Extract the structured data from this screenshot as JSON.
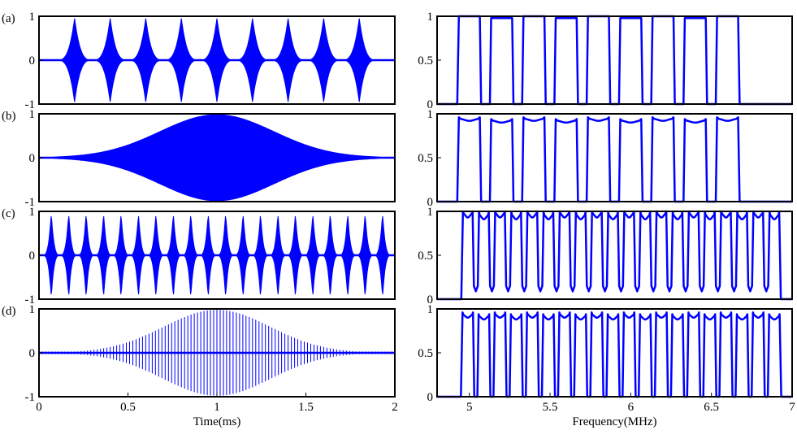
{
  "figure": {
    "panel_labels": [
      "(a)",
      "(b)",
      "(c)",
      "(d)"
    ],
    "line_color": "#0000ff"
  },
  "chart_data": [
    {
      "type": "line",
      "panel": "(a)",
      "side": "time",
      "xlabel": "",
      "ylabel": "",
      "xlim": [
        0,
        2
      ],
      "ylim": [
        -1,
        1
      ],
      "yticks": [
        -1,
        0,
        1
      ],
      "ytick_labels": [
        "-1",
        "0",
        "1"
      ],
      "xticks": [],
      "xtick_labels": [],
      "envelope": {
        "kind": "periodic",
        "bursts": 9,
        "start": 0.1,
        "end": 1.9,
        "peak": 0.95
      }
    },
    {
      "type": "line",
      "panel": "(b)",
      "side": "time",
      "xlabel": "",
      "ylabel": "",
      "xlim": [
        0,
        2
      ],
      "ylim": [
        -1,
        1
      ],
      "yticks": [
        -1,
        0,
        1
      ],
      "ytick_labels": [
        "-1",
        "0",
        "1"
      ],
      "xticks": [],
      "xtick_labels": [],
      "envelope": {
        "kind": "gaussian",
        "center": 1.0,
        "sigma": 0.32,
        "peak": 0.98
      }
    },
    {
      "type": "line",
      "panel": "(c)",
      "side": "time",
      "xlabel": "",
      "ylabel": "",
      "xlim": [
        0,
        2
      ],
      "ylim": [
        -1,
        1
      ],
      "yticks": [
        -1,
        0,
        1
      ],
      "ytick_labels": [
        "-1",
        "0",
        "1"
      ],
      "xticks": [],
      "xtick_labels": [],
      "envelope": {
        "kind": "periodic",
        "bursts": 20,
        "start": 0.02,
        "end": 1.98,
        "peak": 0.95
      }
    },
    {
      "type": "line",
      "panel": "(d)",
      "side": "time",
      "xlabel": "Time(ms)",
      "ylabel": "",
      "xlim": [
        0,
        2
      ],
      "ylim": [
        -1,
        1
      ],
      "yticks": [
        -1,
        0,
        1
      ],
      "ytick_labels": [
        "-1",
        "0",
        "1"
      ],
      "xticks": [
        0,
        0.5,
        1,
        1.5,
        2
      ],
      "xtick_labels": [
        "0",
        "0.5",
        "1",
        "1.5",
        "2"
      ],
      "envelope": {
        "kind": "gaussian-lines",
        "center": 1.0,
        "sigma": 0.3,
        "peak": 0.98,
        "lines": 110
      }
    },
    {
      "type": "line",
      "panel": "(a)",
      "side": "frequency",
      "xlabel": "",
      "ylabel": "",
      "xlim": [
        4.8,
        7
      ],
      "ylim": [
        0,
        1
      ],
      "yticks": [
        0,
        0.5,
        1
      ],
      "ytick_labels": [
        "0",
        "0.5",
        "1"
      ],
      "xticks": [],
      "xtick_labels": [],
      "bands": {
        "count": 9,
        "first_center": 5.0,
        "spacing": 0.2,
        "width": 0.13,
        "top": 1.0,
        "ripple": 0
      }
    },
    {
      "type": "line",
      "panel": "(b)",
      "side": "frequency",
      "xlabel": "",
      "ylabel": "",
      "xlim": [
        4.8,
        7
      ],
      "ylim": [
        0,
        1
      ],
      "yticks": [
        0,
        0.5,
        1
      ],
      "ytick_labels": [
        "0",
        "0.5",
        "1"
      ],
      "xticks": [],
      "xtick_labels": [],
      "bands": {
        "count": 9,
        "first_center": 5.0,
        "spacing": 0.2,
        "width": 0.13,
        "top": 0.92,
        "ripple": 0.04
      }
    },
    {
      "type": "line",
      "panel": "(c)",
      "side": "frequency",
      "xlabel": "",
      "ylabel": "",
      "xlim": [
        4.8,
        7
      ],
      "ylim": [
        0,
        1
      ],
      "yticks": [
        0,
        0.5,
        1
      ],
      "ytick_labels": [
        "0",
        "0.5",
        "1"
      ],
      "xticks": [],
      "xtick_labels": [],
      "bands": {
        "count": 20,
        "first_center": 4.99,
        "spacing": 0.1,
        "width": 0.06,
        "top": 0.93,
        "ripple": 0.08,
        "floor": 0.15
      }
    },
    {
      "type": "line",
      "panel": "(d)",
      "side": "frequency",
      "xlabel": "Frequency(MHz)",
      "ylabel": "",
      "xlim": [
        4.8,
        7
      ],
      "ylim": [
        0,
        1
      ],
      "yticks": [
        0,
        0.5,
        1
      ],
      "ytick_labels": [
        "0",
        "0.5",
        "1"
      ],
      "xticks": [
        5,
        5.5,
        6,
        6.5,
        7
      ],
      "xtick_labels": [
        "5",
        "5.5",
        "6",
        "6.5",
        "7"
      ],
      "bands": {
        "count": 20,
        "first_center": 4.99,
        "spacing": 0.1,
        "width": 0.065,
        "top": 0.9,
        "ripple": 0.06
      }
    }
  ]
}
